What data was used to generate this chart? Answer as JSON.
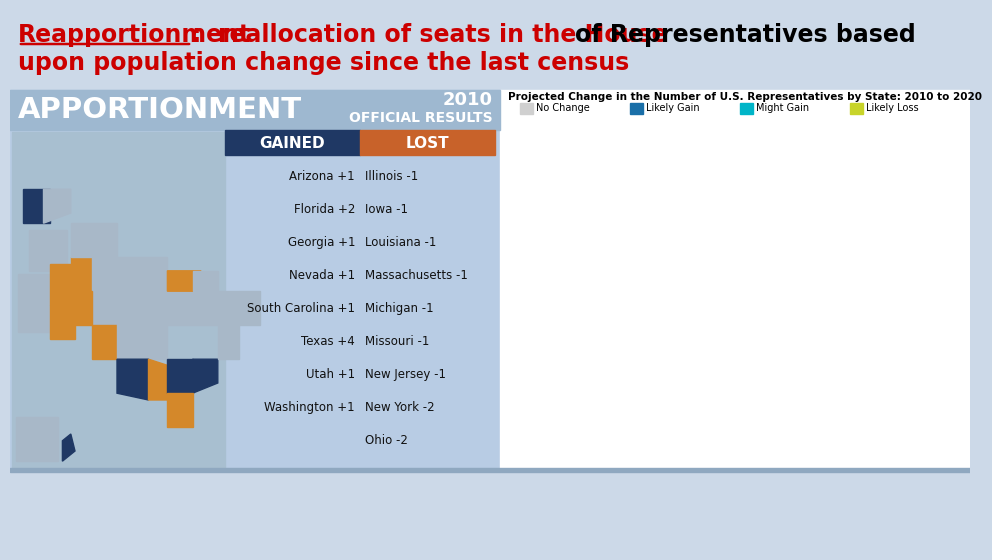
{
  "background_color": "#ccd9e8",
  "title_fontsize": 17,
  "title_color_red": "#cc0000",
  "title_color_black": "#000000",
  "left_panel_bg": "#b8cce4",
  "left_panel_header_bg": "#9eb8d0",
  "header_gained_bg": "#1f3864",
  "header_lost_bg": "#c8622a",
  "gained": [
    "Arizona +1",
    "Florida +2",
    "Georgia +1",
    "Nevada +1",
    "South Carolina +1",
    "Texas +4",
    "Utah +1",
    "Washington +1"
  ],
  "lost": [
    "Illinois -1",
    "Iowa -1",
    "Louisiana -1",
    "Massachusetts -1",
    "Michigan -1",
    "Missouri -1",
    "New Jersey -1",
    "New York -2"
  ],
  "last_row_lost": "Ohio -2",
  "right_panel_title": "Projected Change in the Number of U.S. Representatives by State: 2010 to 2020",
  "legend_labels": [
    "No Change",
    "Likely Gain",
    "Might Gain",
    "Likely Loss"
  ],
  "legend_colors": [
    "#d0d0d0",
    "#1a6fa8",
    "#00b5c8",
    "#c8d42a"
  ]
}
